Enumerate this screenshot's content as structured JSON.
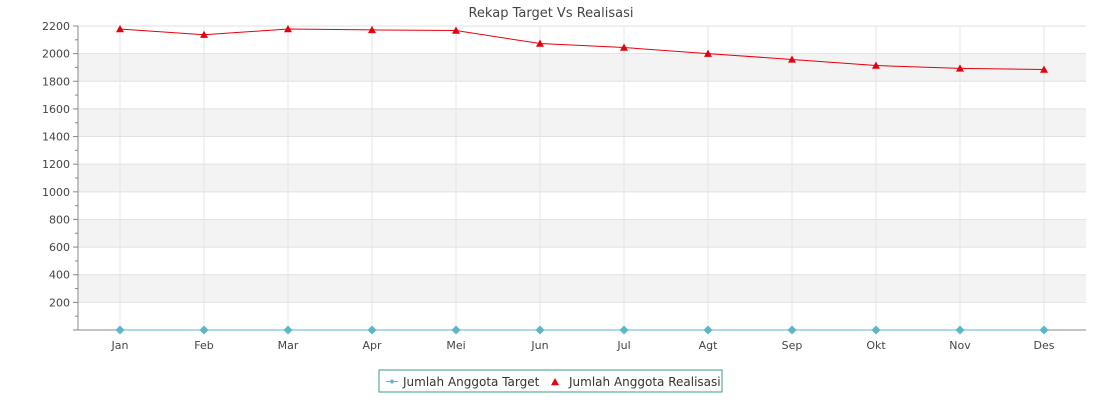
{
  "chart_data": {
    "type": "line",
    "title": "Rekap Target Vs Realisasi",
    "categories": [
      "Jan",
      "Feb",
      "Mar",
      "Apr",
      "Mei",
      "Jun",
      "Jul",
      "Agt",
      "Sep",
      "Okt",
      "Nov",
      "Des"
    ],
    "y_ticks": [
      "200",
      "400",
      "600",
      "800",
      "1000",
      "1200",
      "1400",
      "1600",
      "1800",
      "2000",
      "2200"
    ],
    "ylim": [
      0,
      2200
    ],
    "grid": true,
    "legend_position": "bottom-center",
    "series": [
      {
        "name": "Jumlah Anggota Target",
        "color": "#5bb6c9",
        "marker": "diamond",
        "values": [
          0,
          0,
          0,
          0,
          0,
          0,
          0,
          0,
          0,
          0,
          0,
          0
        ]
      },
      {
        "name": "Jumlah Anggota Realisasi",
        "color": "#e8000b",
        "marker": "triangle",
        "values": [
          2178,
          2137,
          2178,
          2172,
          2167,
          2073,
          2044,
          2000,
          1958,
          1914,
          1893,
          1885
        ]
      }
    ]
  }
}
